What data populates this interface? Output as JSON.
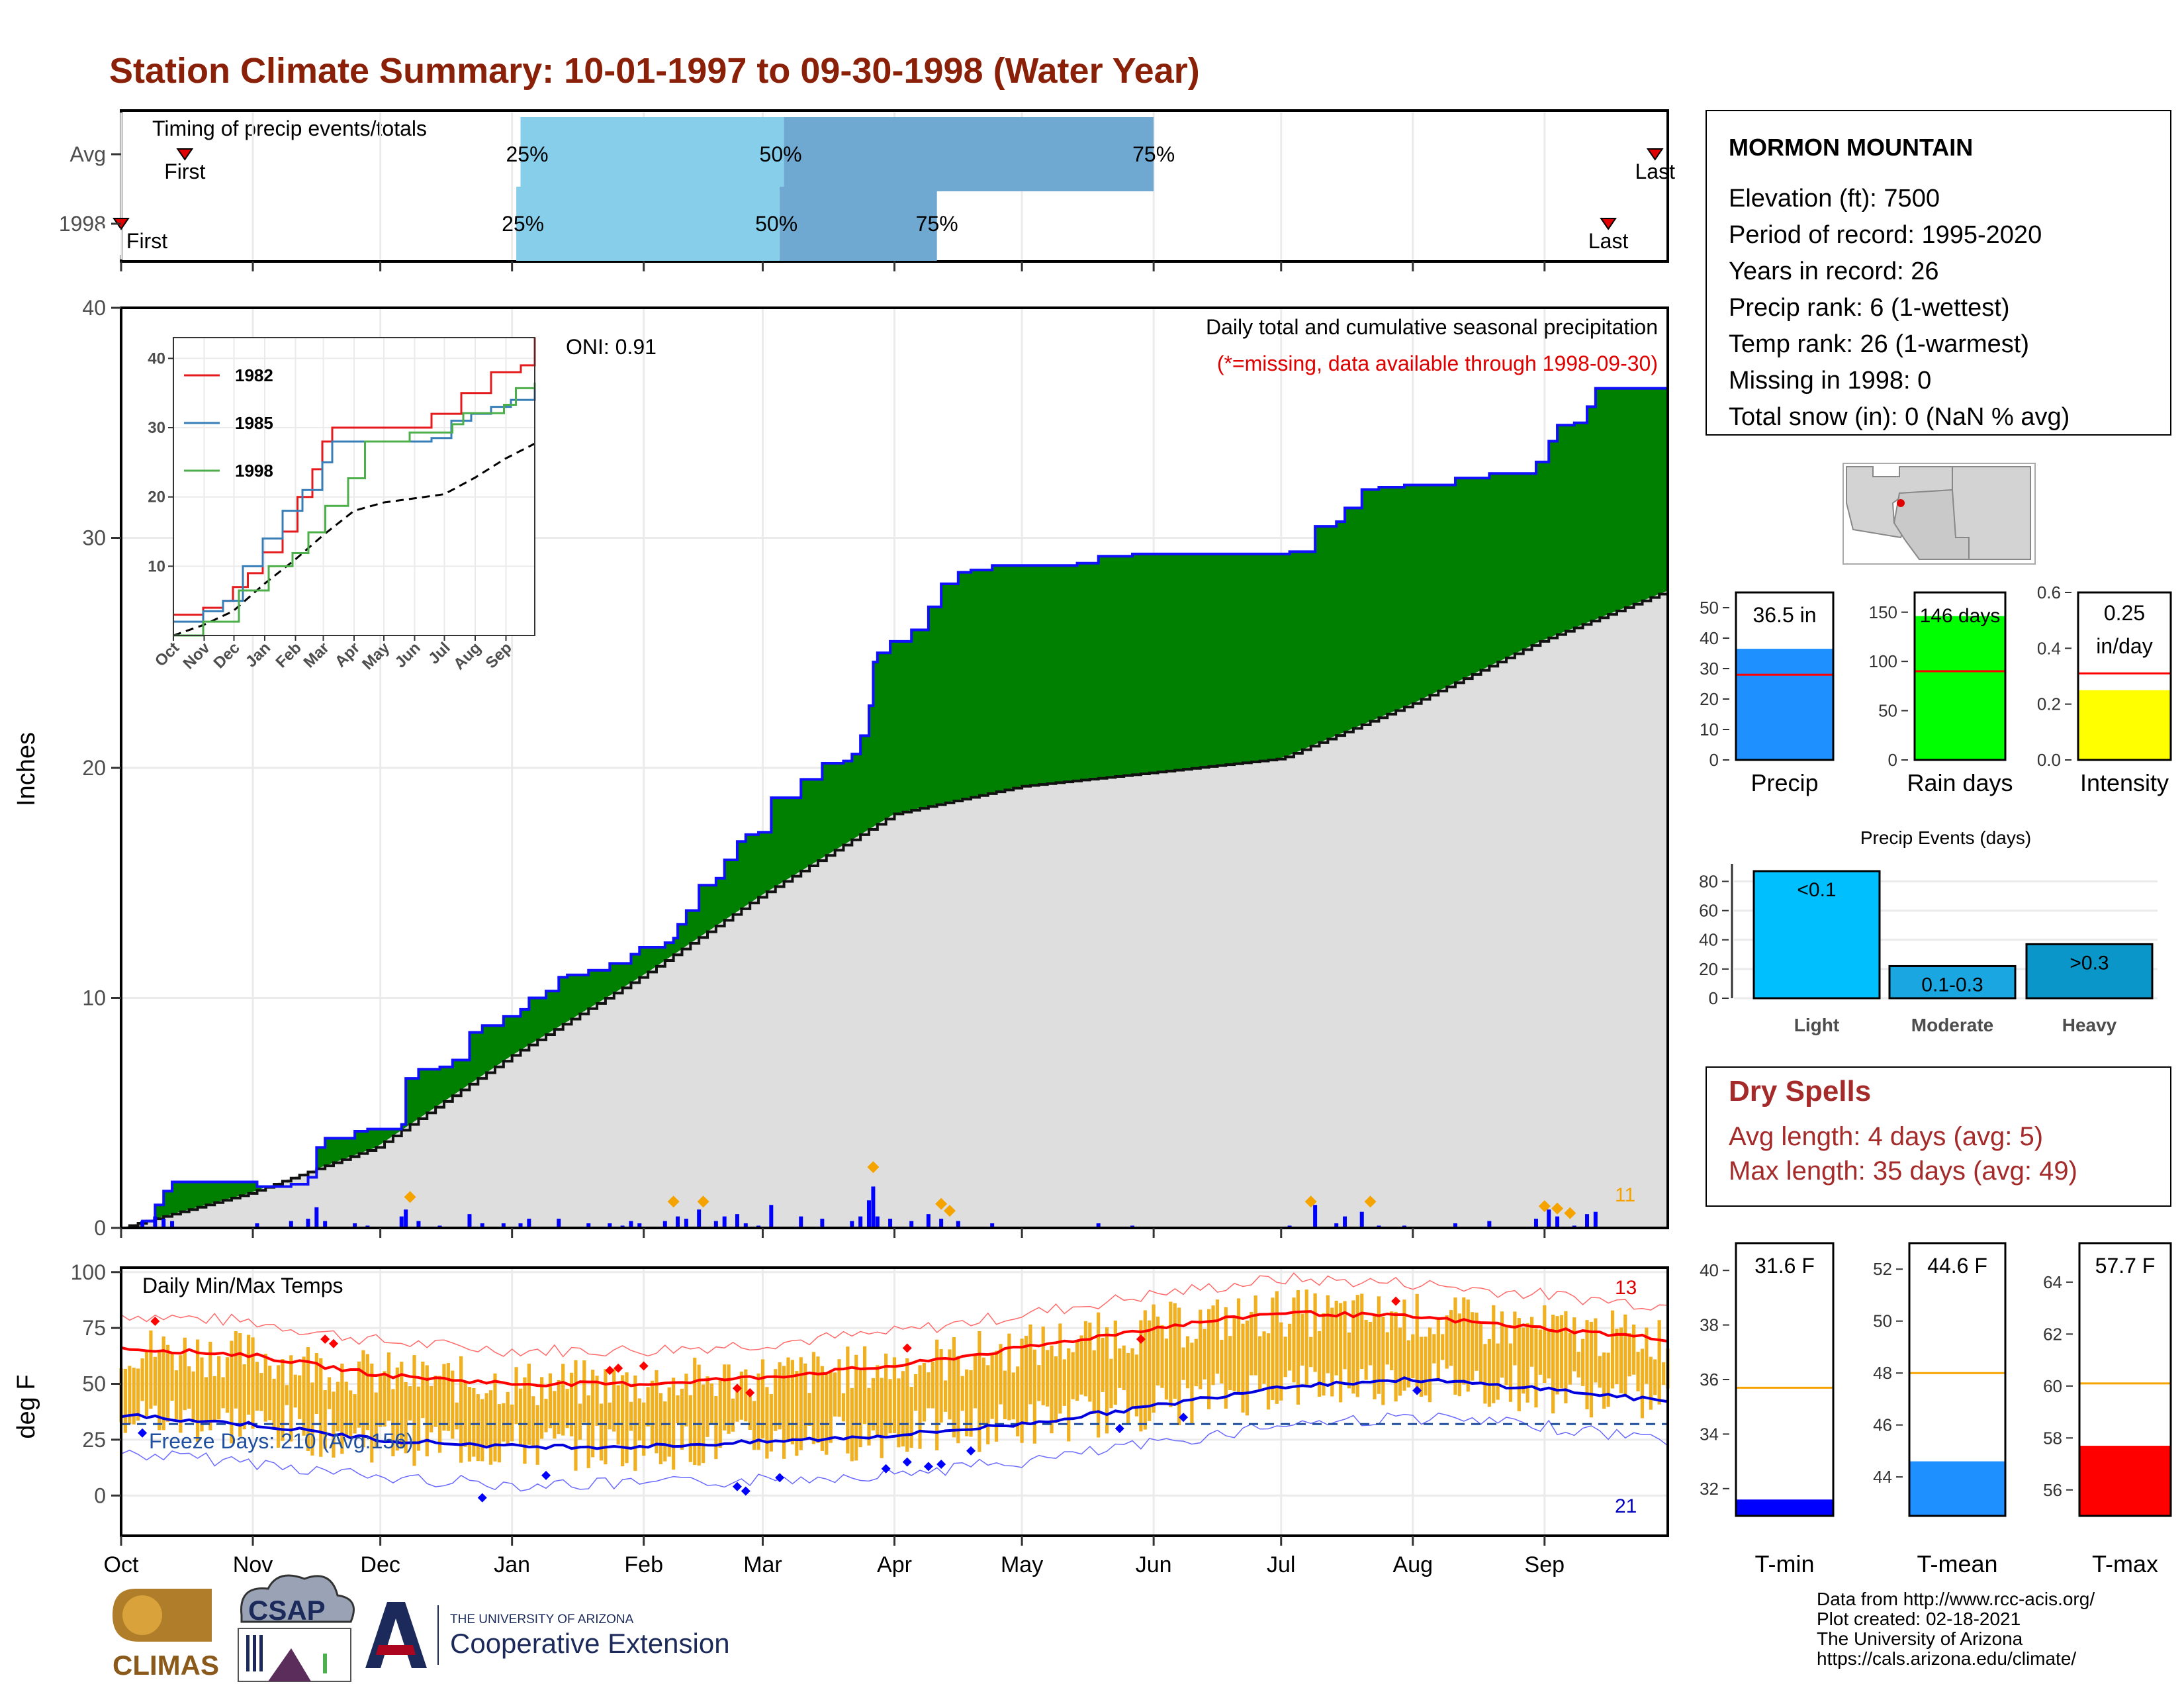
{
  "title": "Station Climate Summary: 10-01-1997 to 09-30-1998 (Water Year)",
  "months": [
    "Oct",
    "Nov",
    "Dec",
    "Jan",
    "Feb",
    "Mar",
    "Apr",
    "May",
    "Jun",
    "Jul",
    "Aug",
    "Sep"
  ],
  "timing": {
    "title": "Timing of precip events/totals",
    "rows": [
      {
        "label": "Avg",
        "first_label": "First",
        "last_label": "Last",
        "first_day": 15,
        "last_day": 361,
        "p25": 94,
        "p50": 156,
        "p75": 243,
        "l25": "25%",
        "l50": "50%",
        "l75": "75%"
      },
      {
        "label": "1998",
        "first_label": "First",
        "last_label": "Last",
        "first_day": 0,
        "last_day": 350,
        "p25": 93,
        "p50": 155,
        "p75": 192,
        "l25": "25%",
        "l50": "50%",
        "l75": "75%"
      }
    ]
  },
  "precip": {
    "ylabel": "Inches",
    "yticks": [
      0,
      10,
      20,
      30,
      40
    ],
    "ylim": [
      0,
      40
    ],
    "title": "Daily total and cumulative seasonal precipitation",
    "missing_note": "(*=missing, data available through 1998-09-30)",
    "oni": "ONI: 0.91",
    "extreme_count": "11",
    "cum_1998": [
      [
        0,
        0
      ],
      [
        5,
        0.3
      ],
      [
        8,
        1.0
      ],
      [
        10,
        1.6
      ],
      [
        12,
        2.0
      ],
      [
        30,
        2.0
      ],
      [
        32,
        1.8
      ],
      [
        40,
        1.9
      ],
      [
        44,
        2.2
      ],
      [
        46,
        3.5
      ],
      [
        48,
        3.9
      ],
      [
        55,
        4.2
      ],
      [
        58,
        4.3
      ],
      [
        66,
        4.5
      ],
      [
        67,
        6.5
      ],
      [
        70,
        6.9
      ],
      [
        75,
        7.0
      ],
      [
        78,
        7.3
      ],
      [
        82,
        8.5
      ],
      [
        85,
        8.8
      ],
      [
        90,
        9.2
      ],
      [
        94,
        9.5
      ],
      [
        96,
        10.0
      ],
      [
        100,
        10.3
      ],
      [
        103,
        10.9
      ],
      [
        105,
        11.0
      ],
      [
        110,
        11.2
      ],
      [
        115,
        11.5
      ],
      [
        118,
        11.5
      ],
      [
        120,
        11.9
      ],
      [
        122,
        12.2
      ],
      [
        128,
        12.4
      ],
      [
        130,
        12.6
      ],
      [
        131,
        13.2
      ],
      [
        133,
        13.8
      ],
      [
        136,
        14.9
      ],
      [
        140,
        15.2
      ],
      [
        142,
        16.0
      ],
      [
        145,
        16.8
      ],
      [
        147,
        17.1
      ],
      [
        150,
        17.2
      ],
      [
        153,
        18.7
      ],
      [
        160,
        19.5
      ],
      [
        165,
        20.2
      ],
      [
        170,
        20.3
      ],
      [
        172,
        20.6
      ],
      [
        174,
        21.4
      ],
      [
        176,
        22.7
      ],
      [
        177,
        24.6
      ],
      [
        178,
        25.0
      ],
      [
        181,
        25.5
      ],
      [
        186,
        26.0
      ],
      [
        190,
        27.0
      ],
      [
        193,
        28.0
      ],
      [
        197,
        28.5
      ],
      [
        200,
        28.6
      ],
      [
        205,
        28.8
      ],
      [
        210,
        28.8
      ],
      [
        225,
        28.9
      ],
      [
        230,
        29.2
      ],
      [
        238,
        29.3
      ],
      [
        262,
        29.3
      ],
      [
        275,
        29.4
      ],
      [
        281,
        30.5
      ],
      [
        286,
        30.7
      ],
      [
        288,
        31.3
      ],
      [
        292,
        32.1
      ],
      [
        296,
        32.2
      ],
      [
        302,
        32.3
      ],
      [
        314,
        32.6
      ],
      [
        322,
        32.8
      ],
      [
        333,
        33.3
      ],
      [
        336,
        34.2
      ],
      [
        338,
        34.9
      ],
      [
        342,
        35.0
      ],
      [
        345,
        35.7
      ],
      [
        347,
        36.5
      ],
      [
        364,
        36.5
      ]
    ],
    "cum_avg": [
      [
        0,
        0
      ],
      [
        30,
        1.5
      ],
      [
        60,
        3.5
      ],
      [
        92,
        7.5
      ],
      [
        123,
        11.0
      ],
      [
        151,
        14.5
      ],
      [
        182,
        18.0
      ],
      [
        212,
        19.2
      ],
      [
        243,
        19.8
      ],
      [
        273,
        20.4
      ],
      [
        304,
        22.8
      ],
      [
        334,
        25.5
      ],
      [
        364,
        27.7
      ]
    ],
    "daily_bars": [
      [
        5,
        0.3
      ],
      [
        8,
        0.5
      ],
      [
        10,
        0.4
      ],
      [
        12,
        0.3
      ],
      [
        32,
        0.2
      ],
      [
        40,
        0.3
      ],
      [
        44,
        0.4
      ],
      [
        46,
        0.9
      ],
      [
        48,
        0.3
      ],
      [
        55,
        0.2
      ],
      [
        58,
        0.1
      ],
      [
        66,
        0.5
      ],
      [
        67,
        0.8
      ],
      [
        70,
        0.3
      ],
      [
        75,
        0.1
      ],
      [
        82,
        0.6
      ],
      [
        85,
        0.2
      ],
      [
        90,
        0.2
      ],
      [
        94,
        0.2
      ],
      [
        96,
        0.4
      ],
      [
        103,
        0.4
      ],
      [
        110,
        0.2
      ],
      [
        115,
        0.2
      ],
      [
        118,
        0.1
      ],
      [
        120,
        0.3
      ],
      [
        122,
        0.2
      ],
      [
        128,
        0.3
      ],
      [
        131,
        0.5
      ],
      [
        133,
        0.4
      ],
      [
        136,
        0.8
      ],
      [
        140,
        0.3
      ],
      [
        142,
        0.5
      ],
      [
        145,
        0.6
      ],
      [
        147,
        0.2
      ],
      [
        150,
        0.1
      ],
      [
        153,
        1.0
      ],
      [
        160,
        0.5
      ],
      [
        165,
        0.4
      ],
      [
        172,
        0.3
      ],
      [
        174,
        0.5
      ],
      [
        176,
        1.2
      ],
      [
        177,
        1.8
      ],
      [
        178,
        0.5
      ],
      [
        181,
        0.4
      ],
      [
        186,
        0.3
      ],
      [
        190,
        0.6
      ],
      [
        193,
        0.4
      ],
      [
        197,
        0.3
      ],
      [
        205,
        0.2
      ],
      [
        230,
        0.2
      ],
      [
        238,
        0.1
      ],
      [
        275,
        0.1
      ],
      [
        281,
        1.0
      ],
      [
        286,
        0.2
      ],
      [
        288,
        0.5
      ],
      [
        292,
        0.7
      ],
      [
        296,
        0.1
      ],
      [
        302,
        0.1
      ],
      [
        314,
        0.2
      ],
      [
        322,
        0.3
      ],
      [
        333,
        0.4
      ],
      [
        336,
        0.8
      ],
      [
        338,
        0.5
      ],
      [
        342,
        0.1
      ],
      [
        345,
        0.6
      ],
      [
        347,
        0.7
      ]
    ],
    "extreme_days": [
      [
        68,
        1.0
      ],
      [
        130,
        0.8
      ],
      [
        137,
        0.8
      ],
      [
        177,
        2.3
      ],
      [
        193,
        0.7
      ],
      [
        195,
        0.4
      ],
      [
        280,
        0.8
      ],
      [
        294,
        0.8
      ],
      [
        335,
        0.6
      ],
      [
        338,
        0.5
      ],
      [
        341,
        0.3
      ]
    ]
  },
  "inset": {
    "yticks": [
      10,
      20,
      30,
      40
    ],
    "ylim": [
      0,
      43
    ],
    "months": [
      "Oct",
      "Nov",
      "Dec",
      "Jan",
      "Feb",
      "Mar",
      "Apr",
      "May",
      "Jun",
      "Jul",
      "Aug",
      "Sep"
    ],
    "series": [
      {
        "name": "1982",
        "color": "#e41a1c",
        "points": [
          [
            0,
            3
          ],
          [
            30,
            4
          ],
          [
            50,
            5
          ],
          [
            60,
            7
          ],
          [
            75,
            9
          ],
          [
            90,
            12
          ],
          [
            110,
            15
          ],
          [
            125,
            20
          ],
          [
            140,
            24
          ],
          [
            150,
            28
          ],
          [
            160,
            30
          ],
          [
            175,
            30
          ],
          [
            200,
            30
          ],
          [
            230,
            30
          ],
          [
            260,
            32
          ],
          [
            290,
            35
          ],
          [
            320,
            38
          ],
          [
            350,
            39
          ],
          [
            364,
            43
          ]
        ]
      },
      {
        "name": "1985",
        "color": "#377eb8",
        "points": [
          [
            0,
            2
          ],
          [
            30,
            3.5
          ],
          [
            50,
            5
          ],
          [
            70,
            10
          ],
          [
            90,
            14
          ],
          [
            110,
            18
          ],
          [
            130,
            21
          ],
          [
            150,
            25
          ],
          [
            160,
            28
          ],
          [
            180,
            28
          ],
          [
            210,
            28
          ],
          [
            240,
            28
          ],
          [
            260,
            28.5
          ],
          [
            280,
            31
          ],
          [
            300,
            32
          ],
          [
            320,
            33
          ],
          [
            340,
            34
          ],
          [
            364,
            36
          ]
        ]
      },
      {
        "name": "1998",
        "color": "#4daf4a",
        "points": [
          [
            0,
            0
          ],
          [
            30,
            2
          ],
          [
            66,
            6.5
          ],
          [
            96,
            10
          ],
          [
            120,
            11.9
          ],
          [
            136,
            14.9
          ],
          [
            153,
            18.7
          ],
          [
            176,
            22.7
          ],
          [
            193,
            28
          ],
          [
            238,
            29.3
          ],
          [
            281,
            30.5
          ],
          [
            292,
            32.1
          ],
          [
            333,
            33.3
          ],
          [
            345,
            35.7
          ],
          [
            364,
            36.5
          ]
        ]
      }
    ],
    "avg_points": [
      [
        0,
        0
      ],
      [
        30,
        1.5
      ],
      [
        60,
        3.5
      ],
      [
        92,
        7.5
      ],
      [
        123,
        11
      ],
      [
        151,
        14.5
      ],
      [
        182,
        18
      ],
      [
        212,
        19.2
      ],
      [
        243,
        19.8
      ],
      [
        273,
        20.4
      ],
      [
        304,
        22.8
      ],
      [
        334,
        25.5
      ],
      [
        364,
        27.7
      ]
    ]
  },
  "temp": {
    "ylabel": "deg F",
    "yticks": [
      0,
      25,
      50,
      75,
      100
    ],
    "ylim": [
      -18,
      102
    ],
    "title": "Daily Min/Max Temps",
    "freeze_label": "Freeze Days: 210 (Avg:156)",
    "freeze_value": 32,
    "record_high_count": "13",
    "record_low_count": "21",
    "avg_max": [
      [
        0,
        66
      ],
      [
        30,
        63
      ],
      [
        61,
        54
      ],
      [
        92,
        50
      ],
      [
        123,
        50
      ],
      [
        151,
        53
      ],
      [
        182,
        58
      ],
      [
        212,
        66
      ],
      [
        243,
        75
      ],
      [
        273,
        82
      ],
      [
        304,
        80
      ],
      [
        334,
        75
      ],
      [
        364,
        70
      ]
    ],
    "avg_min": [
      [
        0,
        36
      ],
      [
        30,
        32
      ],
      [
        61,
        25
      ],
      [
        92,
        22
      ],
      [
        123,
        22
      ],
      [
        151,
        24
      ],
      [
        182,
        27
      ],
      [
        212,
        32
      ],
      [
        243,
        40
      ],
      [
        273,
        49
      ],
      [
        304,
        52
      ],
      [
        334,
        48
      ],
      [
        364,
        42
      ]
    ]
  },
  "station": {
    "name": "MORMON MOUNTAIN",
    "lines": [
      "Elevation (ft): 7500",
      "Period of record: 1995-2020",
      "Years in record: 26",
      "Precip rank: 6 (1-wettest)",
      "Temp rank: 26 (1-warmest)",
      "Missing in 1998: 0",
      "Total snow (in): 0 (NaN % avg)"
    ]
  },
  "small_bars": [
    {
      "label": "Precip",
      "value": 36.5,
      "value_label": "36.5 in",
      "avg": 28,
      "ylim": [
        0,
        55
      ],
      "yticks": [
        0,
        10,
        20,
        30,
        40,
        50
      ],
      "color": "#1e90ff"
    },
    {
      "label": "Rain days",
      "value": 146,
      "value_label": "146 days",
      "avg": 90,
      "ylim": [
        0,
        170
      ],
      "yticks": [
        0,
        50,
        100,
        150
      ],
      "color": "#00ff00"
    },
    {
      "label": "Intensity",
      "value": 0.25,
      "value_label": "0.25 in/day",
      "avg": 0.31,
      "ylim": [
        0,
        0.6
      ],
      "yticks": [
        0.0,
        0.2,
        0.4,
        0.6
      ],
      "color": "#ffff00"
    }
  ],
  "events": {
    "title": "Precip Events (days)",
    "yticks": [
      0,
      20,
      40,
      60,
      80
    ],
    "ylim": [
      0,
      92
    ],
    "categories": [
      "Light",
      "Moderate",
      "Heavy"
    ],
    "bar_labels": [
      "<0.1",
      "0.1-0.3",
      ">0.3"
    ],
    "values": [
      87,
      22,
      37
    ],
    "colors": [
      "#00bfff",
      "#1aa6e0",
      "#0a96c8"
    ]
  },
  "dry_spells": {
    "title": "Dry Spells",
    "avg_line": "Avg length: 4 days (avg: 5)",
    "max_line": "Max length: 35 days (avg: 49)"
  },
  "temp_bars": [
    {
      "label": "T-min",
      "value": 31.6,
      "value_label": "31.6 F",
      "avg": 35.7,
      "ylim": [
        31,
        41
      ],
      "yticks": [
        32,
        34,
        36,
        38,
        40
      ],
      "color": "#0000ff"
    },
    {
      "label": "T-mean",
      "value": 44.6,
      "value_label": "44.6 F",
      "avg": 48,
      "ylim": [
        42.5,
        53
      ],
      "yticks": [
        44,
        46,
        48,
        50,
        52
      ],
      "color": "#1e90ff"
    },
    {
      "label": "T-max",
      "value": 57.7,
      "value_label": "57.7 F",
      "avg": 60.1,
      "ylim": [
        55,
        65.5
      ],
      "yticks": [
        56,
        58,
        60,
        62,
        64
      ],
      "color": "#ff0000"
    }
  ],
  "footer": {
    "lines": [
      "Data from http://www.rcc-acis.org/",
      "Plot created: 02-18-2021",
      "The University of Arizona",
      "https://cals.arizona.edu/climate/"
    ]
  },
  "logos": {
    "climas": "CLIMAS",
    "csap": "CSAP",
    "ua_small": "THE UNIVERSITY OF ARIZONA",
    "ua_big": "Cooperative Extension"
  }
}
